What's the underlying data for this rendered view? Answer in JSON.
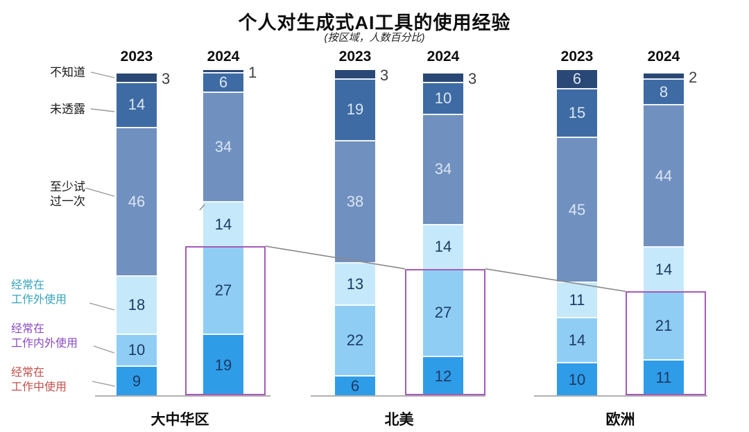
{
  "title": "个人对生成式AI工具的使用经验",
  "subtitle": "(按区域，人数百分比)",
  "legend": {
    "categories": [
      {
        "key": "dont-know",
        "label": "不知道",
        "lines": [
          "不知道"
        ],
        "text_color": "#1a1a1a",
        "segment_color": "#2a4875"
      },
      {
        "key": "not-disclosed",
        "label": "未透露",
        "lines": [
          "未透露"
        ],
        "text_color": "#1a1a1a",
        "segment_color": "#3e6ba3"
      },
      {
        "key": "tried-at-least-once",
        "label": "至少试过一次",
        "lines": [
          "至少试",
          "过一次"
        ],
        "text_color": "#1a1a1a",
        "segment_color": "#7090bf"
      },
      {
        "key": "often-outside-work",
        "label": "经常在工作外使用",
        "lines": [
          "经常在",
          "工作外使用"
        ],
        "text_color": "#35a3bc",
        "segment_color": "#c5e9fb"
      },
      {
        "key": "often-inside-and-outside-work",
        "label": "经常在工作内外使用",
        "lines": [
          "经常在",
          "工作内外使用"
        ],
        "text_color": "#8a4ac1",
        "segment_color": "#8fcdf5"
      },
      {
        "key": "often-at-work",
        "label": "经常在工作中使用",
        "lines": [
          "经常在",
          "工作中使用"
        ],
        "text_color": "#c14f48",
        "segment_color": "#2f9ce8"
      }
    ]
  },
  "chart_data": {
    "type": "bar",
    "stacked": true,
    "value_unit": "percent",
    "title": "个人对生成式AI工具的使用经验",
    "subtitle": "(按区域，人数百分比)",
    "value_axis_visible": false,
    "ylim": [
      0,
      100
    ],
    "segment_order_top_to_bottom": [
      "不知道",
      "未透露",
      "至少试过一次",
      "经常在工作外使用",
      "经常在工作内外使用",
      "经常在工作中使用"
    ],
    "groups": [
      {
        "key": "greater-china",
        "region": "大中华区",
        "bars": [
          {
            "year": "2023",
            "values": [
              3,
              14,
              46,
              18,
              10,
              9
            ],
            "highlighted": false
          },
          {
            "year": "2024",
            "values": [
              1,
              6,
              34,
              14,
              27,
              19
            ],
            "highlighted": true
          }
        ]
      },
      {
        "key": "north-america",
        "region": "北美",
        "bars": [
          {
            "year": "2023",
            "values": [
              3,
              19,
              38,
              13,
              22,
              6
            ],
            "highlighted": false
          },
          {
            "year": "2024",
            "values": [
              3,
              10,
              34,
              14,
              27,
              12
            ],
            "highlighted": true
          }
        ]
      },
      {
        "key": "europe",
        "region": "欧洲",
        "bars": [
          {
            "year": "2023",
            "values": [
              6,
              15,
              45,
              11,
              14,
              10
            ],
            "highlighted": false
          },
          {
            "year": "2024",
            "values": [
              2,
              8,
              44,
              14,
              21,
              11
            ],
            "highlighted": true
          }
        ]
      }
    ]
  },
  "colors": {
    "segments": [
      "#2a4875",
      "#3e6ba3",
      "#7090bf",
      "#c5e9fb",
      "#8fcdf5",
      "#2f9ce8"
    ],
    "segment_text_light": "#dbe6f3",
    "segment_text_dark": "#1c3a63",
    "outside_value": "#3f3f3f",
    "highlight_box": "#a65ab8",
    "connector_line": "#8a8a8a",
    "leader_line": "#9a9a9a",
    "baseline": "#b0b0b0"
  }
}
